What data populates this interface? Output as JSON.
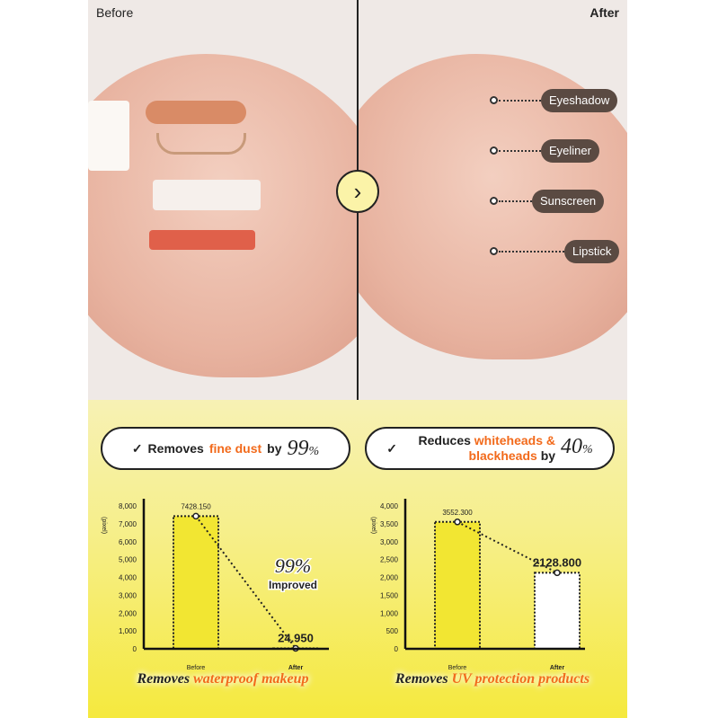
{
  "photos": {
    "before_label": "Before",
    "after_label": "After",
    "arrow_icon": "chevron-right-icon",
    "tags": [
      "Eyeshadow",
      "Eyeliner",
      "Sunscreen",
      "Lipstick"
    ]
  },
  "pills": [
    {
      "prefix": "Removes",
      "highlight": "fine dust",
      "mid": "by",
      "value": "99",
      "unit": "%"
    },
    {
      "prefix": "Reduces",
      "highlight": "whiteheads & blackheads",
      "mid": "by",
      "value": "40",
      "unit": "%"
    }
  ],
  "colors": {
    "accent": "#f26a1b",
    "yellow": "#f5e93e",
    "dark": "#222222"
  },
  "chart_data": [
    {
      "type": "bar",
      "ylabel": "(pixel)",
      "categories": [
        "Before",
        "After"
      ],
      "values": [
        7428.15,
        24.95
      ],
      "value_labels": [
        "7428.150",
        "24.950"
      ],
      "ylim": [
        0,
        8000
      ],
      "yticks": [
        "0",
        "1,000",
        "2,000",
        "3,000",
        "4,000",
        "5,000",
        "6,000",
        "7,000",
        "8,000"
      ],
      "annotation_value": "99%",
      "annotation_text": "Improved",
      "caption_prefix": "Removes",
      "caption_highlight": "waterproof makeup"
    },
    {
      "type": "bar",
      "ylabel": "(pixel)",
      "categories": [
        "Before",
        "After"
      ],
      "values": [
        3552.3,
        2128.8
      ],
      "value_labels": [
        "3552.300",
        "2128.800"
      ],
      "ylim": [
        0,
        4000
      ],
      "yticks": [
        "0",
        "500",
        "1,000",
        "1,500",
        "2,000",
        "2,500",
        "3,000",
        "3,500",
        "4,000"
      ],
      "caption_prefix": "Removes",
      "caption_highlight": "UV protection products"
    }
  ]
}
